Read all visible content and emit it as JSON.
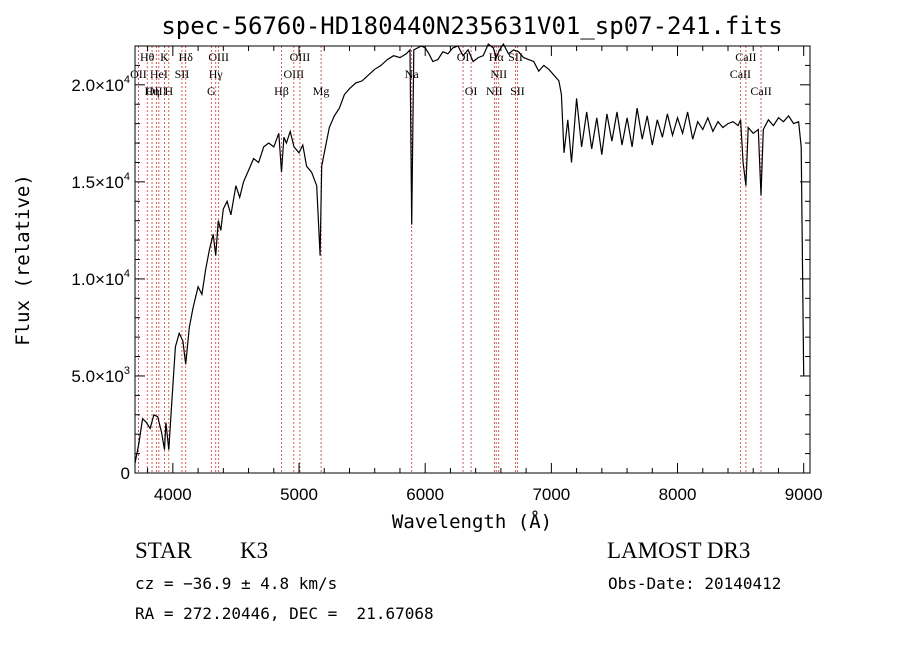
{
  "chart_data": {
    "type": "line",
    "title": "spec-56760-HD180440N235631V01_sp07-241.fits",
    "xlabel": "Wavelength (Å)",
    "ylabel": "Flux (relative)",
    "xlim": [
      3700,
      9050
    ],
    "ylim": [
      0,
      22000
    ],
    "xticks": [
      4000,
      5000,
      6000,
      7000,
      8000,
      9000
    ],
    "xtick_labels": [
      "4000",
      "5000",
      "6000",
      "7000",
      "8000",
      "9000"
    ],
    "yticks": [
      0,
      5000,
      10000,
      15000,
      20000
    ],
    "ytick_labels": [
      {
        "mant": "0",
        "exp": ""
      },
      {
        "mant": "5.0×10",
        "exp": "3"
      },
      {
        "mant": "1.0×10",
        "exp": "4"
      },
      {
        "mant": "1.5×10",
        "exp": "4"
      },
      {
        "mant": "2.0×10",
        "exp": "4"
      }
    ],
    "grid": false,
    "series": [
      {
        "x": [
          3700,
          3730,
          3760,
          3790,
          3820,
          3850,
          3880,
          3910,
          3934,
          3945,
          3968,
          3990,
          4020,
          4050,
          4080,
          4102,
          4130,
          4160,
          4200,
          4230,
          4260,
          4290,
          4320,
          4340,
          4360,
          4380,
          4400,
          4430,
          4460,
          4500,
          4530,
          4560,
          4600,
          4640,
          4680,
          4720,
          4760,
          4800,
          4840,
          4861,
          4880,
          4900,
          4930,
          4960,
          5000,
          5030,
          5060,
          5100,
          5140,
          5167,
          5180,
          5200,
          5240,
          5280,
          5320,
          5360,
          5400,
          5450,
          5500,
          5550,
          5600,
          5650,
          5700,
          5750,
          5800,
          5850,
          5880,
          5893,
          5910,
          5940,
          5970,
          6000,
          6030,
          6060,
          6100,
          6140,
          6180,
          6220,
          6260,
          6300,
          6340,
          6380,
          6420,
          6460,
          6500,
          6540,
          6563,
          6590,
          6620,
          6660,
          6700,
          6740,
          6780,
          6820,
          6860,
          6900,
          6940,
          6980,
          7020,
          7060,
          7080,
          7100,
          7130,
          7160,
          7200,
          7240,
          7280,
          7320,
          7360,
          7400,
          7440,
          7480,
          7520,
          7560,
          7600,
          7640,
          7680,
          7720,
          7760,
          7800,
          7840,
          7880,
          7920,
          7960,
          8000,
          8040,
          8080,
          8120,
          8160,
          8200,
          8240,
          8280,
          8320,
          8360,
          8400,
          8440,
          8480,
          8500,
          8520,
          8542,
          8560,
          8600,
          8640,
          8662,
          8680,
          8720,
          8760,
          8800,
          8840,
          8880,
          8920,
          8960,
          8980,
          9000
        ],
        "y": [
          500,
          1500,
          2800,
          2600,
          2300,
          3000,
          2900,
          2100,
          1200,
          2600,
          1200,
          3500,
          6500,
          7200,
          6800,
          5600,
          7500,
          8500,
          9600,
          9200,
          10500,
          11500,
          12300,
          11200,
          13000,
          12500,
          13600,
          14000,
          13300,
          14800,
          14200,
          15000,
          15600,
          16200,
          16000,
          16800,
          17000,
          16800,
          17500,
          15500,
          17300,
          17000,
          17600,
          16800,
          16500,
          16900,
          15800,
          15500,
          14800,
          11200,
          15800,
          16500,
          17800,
          18400,
          18800,
          19500,
          19800,
          20100,
          20200,
          20500,
          20800,
          21000,
          21300,
          21500,
          21400,
          21600,
          21800,
          12800,
          21800,
          21900,
          22000,
          21900,
          21600,
          21200,
          21300,
          21700,
          21600,
          21900,
          22000,
          21500,
          21800,
          21200,
          21400,
          21500,
          22100,
          21900,
          21400,
          21800,
          22100,
          21600,
          21800,
          21700,
          21400,
          21300,
          21200,
          20700,
          21000,
          20800,
          20500,
          20200,
          19500,
          16500,
          18200,
          16000,
          19300,
          16800,
          18600,
          16700,
          18300,
          16400,
          18500,
          17100,
          18600,
          16900,
          18300,
          16800,
          18800,
          17200,
          18400,
          16900,
          18200,
          17300,
          18500,
          17400,
          18300,
          17500,
          18600,
          17200,
          18100,
          17700,
          18300,
          17600,
          18100,
          17800,
          18000,
          18100,
          17900,
          18200,
          16000,
          14800,
          17800,
          17500,
          17700,
          14300,
          17700,
          18200,
          17900,
          18300,
          18100,
          18400,
          18000,
          18100,
          16800,
          5000
        ]
      }
    ],
    "spectral_lines": [
      {
        "label": "Hθ",
        "wl": 3797,
        "row": 0
      },
      {
        "label": "OII",
        "wl": 3727,
        "row": 1
      },
      {
        "label": "OIII",
        "wl": 3869,
        "row": 2
      },
      {
        "label": "HeI",
        "wl": 3889,
        "row": 1
      },
      {
        "label": "K",
        "wl": 3934,
        "row": 0
      },
      {
        "label": "Hη",
        "wl": 3835,
        "row": 2
      },
      {
        "label": "H",
        "wl": 3968,
        "row": 2
      },
      {
        "label": "SII",
        "wl": 4072,
        "row": 1
      },
      {
        "label": "Hδ",
        "wl": 4102,
        "row": 0
      },
      {
        "label": "OIII",
        "wl": 4363,
        "row": 0
      },
      {
        "label": "Hγ",
        "wl": 4340,
        "row": 1
      },
      {
        "label": "G",
        "wl": 4305,
        "row": 2
      },
      {
        "label": "OIII",
        "wl": 5007,
        "row": 0
      },
      {
        "label": "OIII",
        "wl": 4959,
        "row": 1
      },
      {
        "label": "Hβ",
        "wl": 4861,
        "row": 2
      },
      {
        "label": "Mg",
        "wl": 5175,
        "row": 2
      },
      {
        "label": "Na",
        "wl": 5893,
        "row": 1
      },
      {
        "label": "OI",
        "wl": 6300,
        "row": 0
      },
      {
        "label": "OI",
        "wl": 6364,
        "row": 2
      },
      {
        "label": "Hα",
        "wl": 6563,
        "row": 0
      },
      {
        "label": "NII",
        "wl": 6548,
        "row": 2
      },
      {
        "label": "NII",
        "wl": 6583,
        "row": 1
      },
      {
        "label": "SII",
        "wl": 6716,
        "row": 0
      },
      {
        "label": "SII",
        "wl": 6731,
        "row": 2
      },
      {
        "label": "CaII",
        "wl": 8542,
        "row": 0
      },
      {
        "label": "CaII",
        "wl": 8498,
        "row": 1
      },
      {
        "label": "CaII",
        "wl": 8662,
        "row": 2
      }
    ],
    "line_color": "#cc3333"
  },
  "info": {
    "class_label": "STAR",
    "subclass": "K3",
    "survey": "LAMOST DR3",
    "redshift": "cz = −36.9 ± 4.8 km/s",
    "obs_date": "Obs-Date: 20140412",
    "coords": "RA = 272.20446, DEC =  21.67068"
  }
}
